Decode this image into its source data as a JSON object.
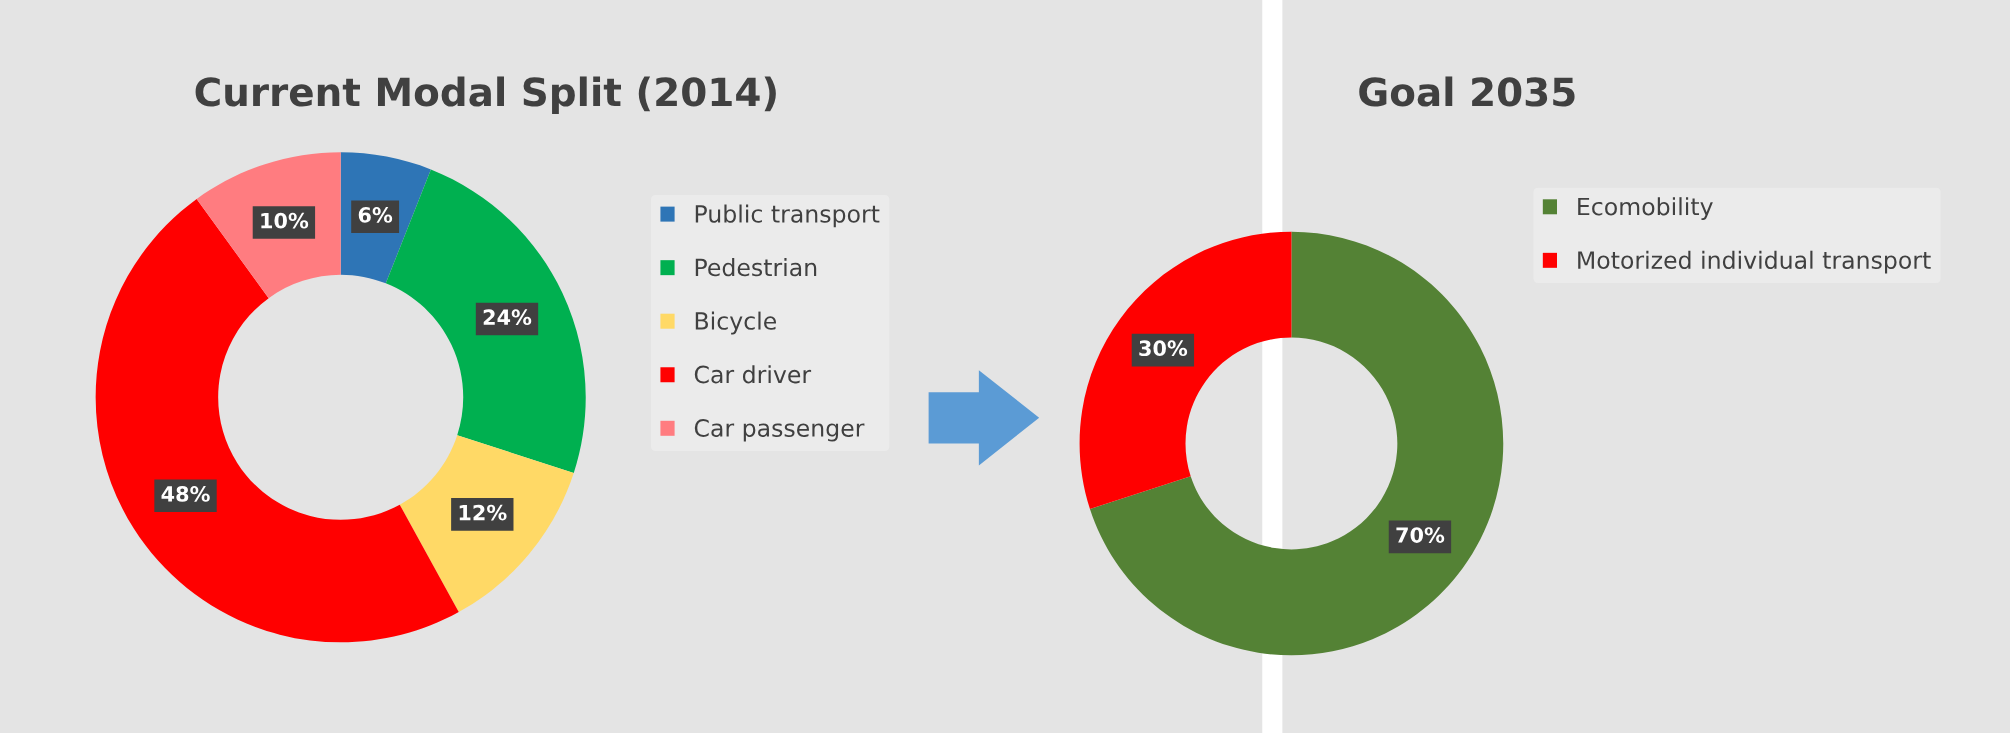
{
  "chart_data": [
    {
      "type": "donut",
      "title": "Current Modal Split (2014)",
      "categories": [
        "Public transport",
        "Pedestrian",
        "Bicycle",
        "Car driver",
        "Car passenger"
      ],
      "values": [
        6,
        24,
        12,
        48,
        10
      ],
      "colors": [
        "#2e75b6",
        "#00b050",
        "#ffd966",
        "#ff0000",
        "#ff7c80"
      ],
      "value_labels": [
        "6%",
        "24%",
        "12%",
        "48%",
        "10%"
      ],
      "legend": "right"
    },
    {
      "type": "donut",
      "title": "Goal 2035",
      "categories": [
        "Ecomobility",
        "Motorized individual transport"
      ],
      "values": [
        70,
        30
      ],
      "colors": [
        "#548235",
        "#ff0000"
      ],
      "value_labels": [
        "70%",
        "30%"
      ],
      "legend": "right"
    }
  ]
}
